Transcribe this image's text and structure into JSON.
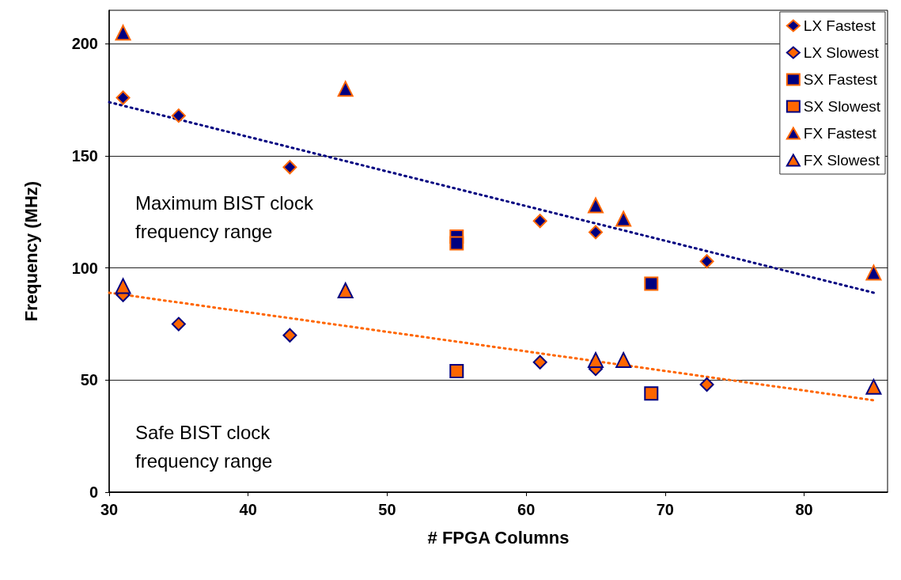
{
  "chart_data": {
    "type": "scatter",
    "xlabel": "# FPGA Columns",
    "ylabel": "Frequency (MHz)",
    "xlim": [
      30,
      86
    ],
    "xticks": [
      30,
      40,
      50,
      60,
      70,
      80
    ],
    "ylim": [
      0,
      215
    ],
    "yticks": [
      0,
      50,
      100,
      150,
      200
    ],
    "grid": "y",
    "legend": "top right",
    "annotations": [
      "Maximum BIST clock frequency range",
      "Safe BIST clock frequency range"
    ],
    "series": [
      {
        "name": "LX Fastest",
        "color": "#000080",
        "marker": "diamond",
        "x": [
          31,
          35,
          43,
          61,
          65,
          73
        ],
        "values": [
          176,
          168,
          145,
          121,
          116,
          103
        ]
      },
      {
        "name": "LX Slowest",
        "color": "#ff6600",
        "marker": "diamond",
        "x": [
          31,
          35,
          43,
          61,
          65,
          73
        ],
        "values": [
          88,
          75,
          70,
          58,
          55,
          48
        ]
      },
      {
        "name": "SX Fastest",
        "color": "#000080",
        "marker": "square",
        "x": [
          55,
          55,
          69
        ],
        "values": [
          114,
          111,
          93
        ]
      },
      {
        "name": "SX Slowest",
        "color": "#ff6600",
        "marker": "square",
        "x": [
          55,
          69
        ],
        "values": [
          54,
          44
        ]
      },
      {
        "name": "FX Fastest",
        "color": "#000080",
        "marker": "triangle",
        "x": [
          31,
          47,
          65,
          67,
          85
        ],
        "values": [
          205,
          180,
          128,
          122,
          98
        ]
      },
      {
        "name": "FX Slowest",
        "color": "#ff6600",
        "marker": "triangle",
        "x": [
          31,
          47,
          65,
          67,
          85
        ],
        "values": [
          92,
          90,
          59,
          59,
          47
        ]
      },
      {
        "type": "line",
        "color": "#000080",
        "line_style": "dotted",
        "x": [
          30,
          85
        ],
        "values": [
          174,
          89
        ]
      },
      {
        "type": "line",
        "color": "#ff6600",
        "line_style": "dotted",
        "x": [
          30,
          85
        ],
        "values": [
          89,
          41
        ]
      }
    ]
  }
}
